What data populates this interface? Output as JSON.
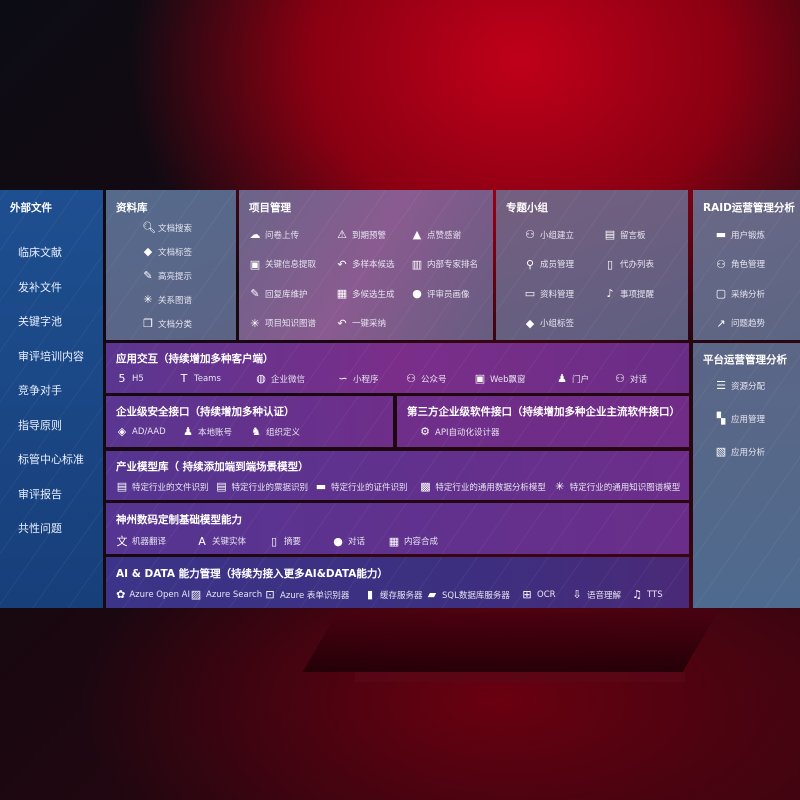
{
  "external": {
    "title": "外部文件",
    "items": [
      "临床文献",
      "发补文件",
      "关键字池",
      "审评培训内容",
      "竞争对手",
      "指导原则",
      "标管中心标准",
      "审评报告",
      "共性问题"
    ]
  },
  "library": {
    "title": "资料库",
    "items": [
      {
        "icon": "doc-search-icon",
        "label": "文档搜索"
      },
      {
        "icon": "tag-icon",
        "label": "文档标签"
      },
      {
        "icon": "pen-icon",
        "label": "高亮提示"
      },
      {
        "icon": "graph-icon",
        "label": "关系图谱"
      },
      {
        "icon": "doc-stack-icon",
        "label": "文档分类"
      }
    ]
  },
  "project": {
    "title": "项目管理",
    "items": [
      {
        "icon": "cloud-upload-icon",
        "label": "问卷上传"
      },
      {
        "icon": "alarm-icon",
        "label": "到期预警"
      },
      {
        "icon": "thumbs-up-icon",
        "label": "点赞感谢"
      },
      {
        "icon": "window-icon",
        "label": "关键信息提取"
      },
      {
        "icon": "reply-icon",
        "label": "多样本候选"
      },
      {
        "icon": "ranking-icon",
        "label": "内部专家排名"
      },
      {
        "icon": "edit-icon",
        "label": "回复库维护"
      },
      {
        "icon": "puzzle-icon",
        "label": "多候选生成"
      },
      {
        "icon": "user-icon",
        "label": "评审员画像"
      },
      {
        "icon": "graph-icon",
        "label": "项目知识图谱"
      },
      {
        "icon": "reply-icon",
        "label": "一键采纳"
      }
    ]
  },
  "group": {
    "title": "专题小组",
    "items": [
      {
        "icon": "users-icon",
        "label": "小组建立"
      },
      {
        "icon": "bbs-icon",
        "label": "留言板"
      },
      {
        "icon": "user-add-icon",
        "label": "成员管理"
      },
      {
        "icon": "clipboard-icon",
        "label": "代办列表"
      },
      {
        "icon": "folder-icon",
        "label": "资料管理"
      },
      {
        "icon": "bell-icon",
        "label": "事项提醒"
      },
      {
        "icon": "tag-icon",
        "label": "小组标签"
      }
    ]
  },
  "raid": {
    "title": "RAID运营管理分析",
    "items": [
      {
        "icon": "id-card-icon",
        "label": "用户锻炼"
      },
      {
        "icon": "users-icon",
        "label": "角色管理"
      },
      {
        "icon": "qa-icon",
        "label": "采纳分析"
      },
      {
        "icon": "trend-icon",
        "label": "问题趋势"
      }
    ]
  },
  "platform": {
    "title": "平台运营管理分析",
    "items": [
      {
        "icon": "list-icon",
        "label": "资源分配"
      },
      {
        "icon": "apps-icon",
        "label": "应用管理"
      },
      {
        "icon": "analysis-icon",
        "label": "应用分析"
      }
    ]
  },
  "app": {
    "title": "应用交互（持续增加多种客户端）",
    "items": [
      {
        "icon": "html5-icon",
        "label": "H5"
      },
      {
        "icon": "teams-icon",
        "label": "Teams"
      },
      {
        "icon": "wechat-icon",
        "label": "企业微信"
      },
      {
        "icon": "miniprogram-icon",
        "label": "小程序"
      },
      {
        "icon": "users-icon",
        "label": "公众号"
      },
      {
        "icon": "window-icon",
        "label": "Web飘窗"
      },
      {
        "icon": "portal-icon",
        "label": "门户"
      },
      {
        "icon": "chat-users-icon",
        "label": "对话"
      }
    ]
  },
  "security": {
    "title": "企业级安全接口（持续增加多种认证）",
    "items": [
      {
        "icon": "diamond-icon",
        "label": "AD/AAD"
      },
      {
        "icon": "user-lock-icon",
        "label": "本地账号"
      },
      {
        "icon": "org-icon",
        "label": "组织定义"
      }
    ]
  },
  "third": {
    "title": "第三方企业级软件接口（持续增加多种企业主流软件接口）",
    "items": [
      {
        "icon": "gear-icon",
        "label": "API自动化设计器"
      }
    ]
  },
  "industry": {
    "title": "产业模型库（ 持续添加端到端场景模型）",
    "items": [
      {
        "icon": "file-icon",
        "label": "特定行业的文件识别"
      },
      {
        "icon": "receipt-icon",
        "label": "特定行业的票据识别"
      },
      {
        "icon": "id-card-icon",
        "label": "特定行业的证件识别"
      },
      {
        "icon": "chart-icon",
        "label": "特定行业的通用数据分析模型"
      },
      {
        "icon": "graph-icon",
        "label": "特定行业的通用知识图谱模型"
      }
    ]
  },
  "base": {
    "title": "神州数码定制基础模型能力",
    "items": [
      {
        "icon": "translate-icon",
        "label": "机器翻译"
      },
      {
        "icon": "entity-icon",
        "label": "关键实体"
      },
      {
        "icon": "doc-icon",
        "label": "摘要"
      },
      {
        "icon": "chat-icon",
        "label": "对话"
      },
      {
        "icon": "puzzle-icon",
        "label": "内容合成"
      }
    ]
  },
  "ai": {
    "title": "AI & DATA 能力管理（持续为接入更多AI&DATA能力）",
    "items": [
      {
        "icon": "openai-icon",
        "label": "Azure Open AI"
      },
      {
        "icon": "search-doc-icon",
        "label": "Azure Search"
      },
      {
        "icon": "form-icon",
        "label": "Azure 表单识别器"
      },
      {
        "icon": "cache-icon",
        "label": "缓存服务器"
      },
      {
        "icon": "database-icon",
        "label": "SQL数据库服务器"
      },
      {
        "icon": "ocr-icon",
        "label": "OCR"
      },
      {
        "icon": "voice-icon",
        "label": "语音理解"
      },
      {
        "icon": "tts-icon",
        "label": "TTS"
      }
    ]
  }
}
